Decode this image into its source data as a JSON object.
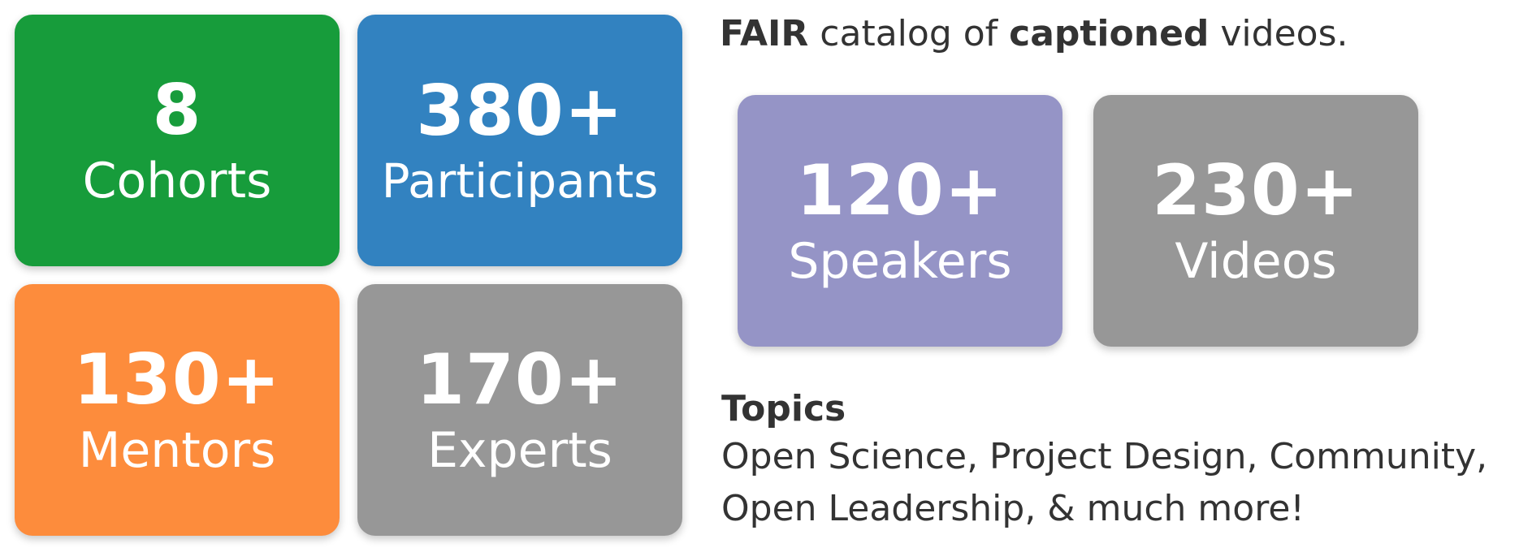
{
  "stats": {
    "cohorts": {
      "value": "8",
      "label": "Cohorts",
      "color": "#179c3b"
    },
    "participants": {
      "value": "380+",
      "label": "Participants",
      "color": "#3282c0"
    },
    "mentors": {
      "value": "130+",
      "label": "Mentors",
      "color": "#fd8c3c"
    },
    "experts": {
      "value": "170+",
      "label": "Experts",
      "color": "#979797"
    },
    "speakers": {
      "value": "120+",
      "label": "Speakers",
      "color": "#9594c6"
    },
    "videos": {
      "value": "230+",
      "label": "Videos",
      "color": "#979797"
    }
  },
  "headline": {
    "part1": "FAIR",
    "part2": " catalog of ",
    "part3": "captioned",
    "part4": " videos."
  },
  "topics": {
    "title": "Topics",
    "line1": "Open Science, Project Design, Community,",
    "line2": "Open Leadership, & much more!"
  }
}
